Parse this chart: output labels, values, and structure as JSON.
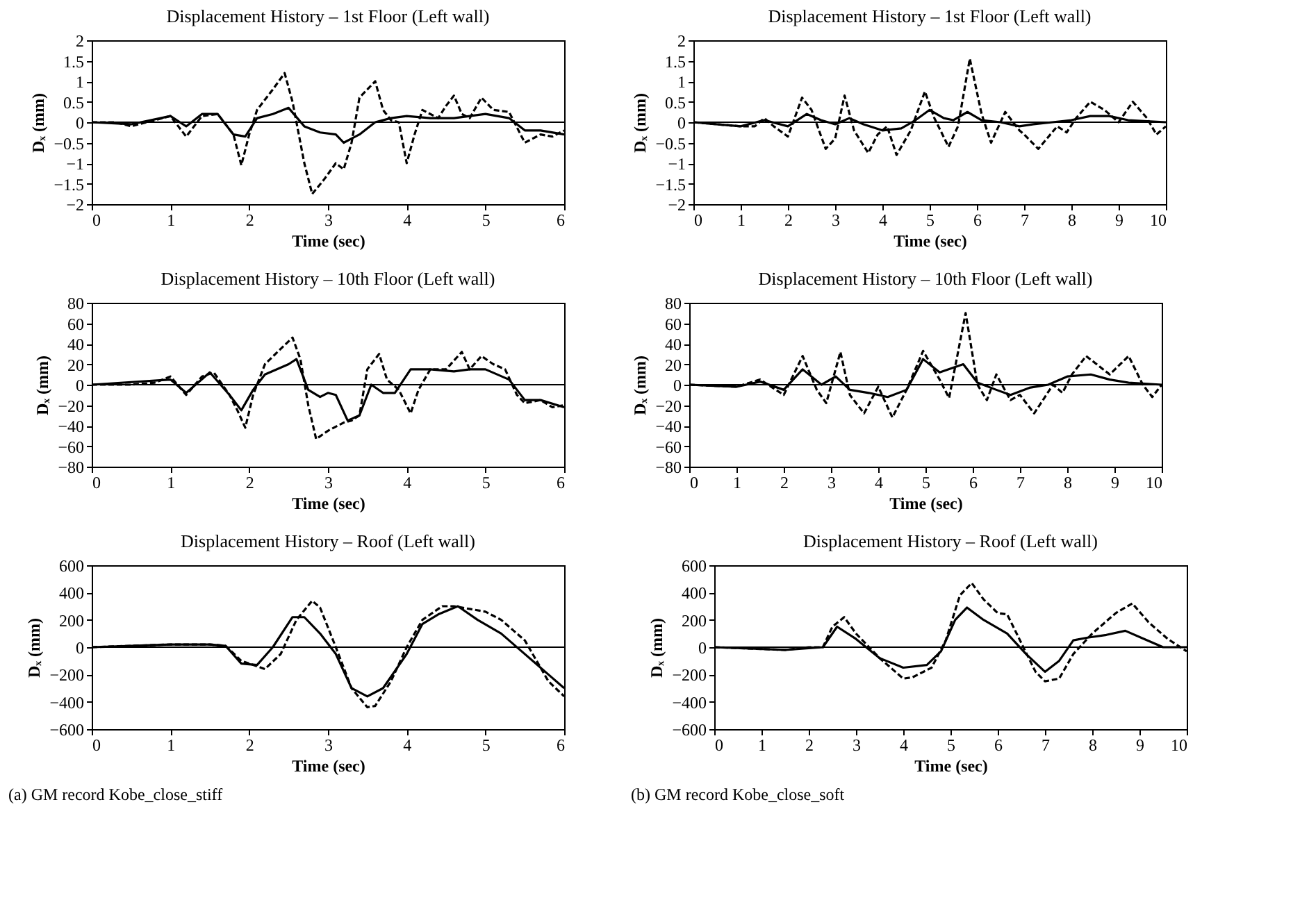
{
  "chart_data": [
    {
      "type": "line",
      "title": "Displacement History – 1st Floor (Left wall)",
      "xlabel": "Time (sec)",
      "ylabel": "Dₓ (mm)",
      "xlim": [
        0,
        6
      ],
      "xticks": [
        0,
        1,
        2,
        3,
        4,
        5,
        6
      ],
      "ylim": [
        -2,
        2
      ],
      "yticks": [
        -2,
        -1.5,
        -1,
        -0.5,
        0,
        0.5,
        1,
        1.5,
        2
      ],
      "grid": false,
      "ref_lines": [
        {
          "axis": "y",
          "value": 0
        }
      ],
      "series": [
        {
          "color": "#000000",
          "line_style": "solid",
          "x": [
            0,
            0.5,
            1.0,
            1.2,
            1.4,
            1.6,
            1.8,
            1.95,
            2.1,
            2.3,
            2.5,
            2.7,
            2.9,
            3.1,
            3.2,
            3.4,
            3.6,
            3.8,
            4.0,
            4.3,
            4.6,
            5.0,
            5.3,
            5.5,
            5.7,
            6
          ],
          "values": [
            0,
            -0.05,
            0.15,
            -0.1,
            0.2,
            0.2,
            -0.3,
            -0.35,
            0.1,
            0.2,
            0.35,
            -0.1,
            -0.25,
            -0.3,
            -0.5,
            -0.3,
            0.0,
            0.1,
            0.15,
            0.1,
            0.1,
            0.2,
            0.1,
            -0.2,
            -0.2,
            -0.3
          ]
        },
        {
          "color": "#000000",
          "line_style": "dashed",
          "x": [
            0,
            0.3,
            0.5,
            0.8,
            1.0,
            1.2,
            1.4,
            1.6,
            1.8,
            1.9,
            2.0,
            2.1,
            2.3,
            2.45,
            2.55,
            2.7,
            2.8,
            2.95,
            3.1,
            3.2,
            3.3,
            3.4,
            3.6,
            3.7,
            3.8,
            3.9,
            4.0,
            4.1,
            4.2,
            4.4,
            4.5,
            4.6,
            4.7,
            4.8,
            4.95,
            5.1,
            5.3,
            5.5,
            5.7,
            5.85,
            6
          ],
          "values": [
            0,
            0,
            -0.1,
            0.05,
            0.15,
            -0.35,
            0.15,
            0.2,
            -0.3,
            -1.05,
            -0.3,
            0.3,
            0.8,
            1.2,
            0.5,
            -1.0,
            -1.75,
            -1.4,
            -1.0,
            -1.15,
            -0.5,
            0.6,
            1.0,
            0.3,
            0.05,
            0.0,
            -1.0,
            -0.3,
            0.3,
            0.1,
            0.4,
            0.65,
            0.2,
            0.1,
            0.6,
            0.3,
            0.25,
            -0.5,
            -0.3,
            -0.35,
            -0.2
          ]
        }
      ]
    },
    {
      "type": "line",
      "title": "Displacement History – 1st Floor (Left wall)",
      "xlabel": "Time (sec)",
      "ylabel": "Dₓ (mm)",
      "xlim": [
        0,
        10
      ],
      "xticks": [
        0,
        1,
        2,
        3,
        4,
        5,
        6,
        7,
        8,
        9,
        10
      ],
      "ylim": [
        -2,
        2
      ],
      "yticks": [
        -2,
        -1.5,
        -1,
        -0.5,
        0,
        0.5,
        1,
        1.5,
        2
      ],
      "grid": false,
      "ref_lines": [
        {
          "axis": "y",
          "value": 0
        }
      ],
      "series": [
        {
          "color": "#000000",
          "line_style": "solid",
          "x": [
            0,
            1,
            1.5,
            2.0,
            2.4,
            2.7,
            3.0,
            3.3,
            3.6,
            4.0,
            4.4,
            4.7,
            5.0,
            5.3,
            5.5,
            5.8,
            6.1,
            6.5,
            6.9,
            7.2,
            7.6,
            8.0,
            8.4,
            8.8,
            9.2,
            10
          ],
          "values": [
            0,
            -0.1,
            0.05,
            -0.1,
            0.2,
            0.05,
            -0.05,
            0.1,
            -0.05,
            -0.2,
            -0.15,
            0.05,
            0.3,
            0.1,
            0.05,
            0.25,
            0.05,
            0.0,
            -0.1,
            -0.05,
            0.0,
            0.05,
            0.15,
            0.15,
            0.05,
            0
          ]
        },
        {
          "color": "#000000",
          "line_style": "dashed",
          "x": [
            0,
            1,
            1.3,
            1.5,
            1.7,
            2.0,
            2.3,
            2.5,
            2.8,
            3.0,
            3.2,
            3.4,
            3.7,
            3.9,
            4.1,
            4.3,
            4.6,
            4.9,
            5.1,
            5.4,
            5.6,
            5.85,
            6.1,
            6.3,
            6.6,
            6.9,
            7.0,
            7.3,
            7.7,
            7.9,
            8.1,
            8.4,
            8.7,
            9.0,
            9.3,
            9.6,
            9.8,
            10
          ],
          "values": [
            0,
            -0.1,
            -0.1,
            0.1,
            -0.1,
            -0.35,
            0.6,
            0.3,
            -0.65,
            -0.4,
            0.65,
            -0.2,
            -0.75,
            -0.3,
            -0.1,
            -0.8,
            -0.2,
            0.75,
            0.1,
            -0.6,
            -0.1,
            1.55,
            0.2,
            -0.5,
            0.25,
            -0.2,
            -0.3,
            -0.65,
            -0.1,
            -0.25,
            0.1,
            0.5,
            0.3,
            0.0,
            0.5,
            0.1,
            -0.3,
            -0.1
          ]
        }
      ]
    },
    {
      "type": "line",
      "title": "Displacement History – 10th Floor (Left wall)",
      "xlabel": "Time (sec)",
      "ylabel": "Dₓ (mm)",
      "xlim": [
        0,
        6
      ],
      "xticks": [
        0,
        1,
        2,
        3,
        4,
        5,
        6
      ],
      "ylim": [
        -80,
        80
      ],
      "yticks": [
        -80,
        -60,
        -40,
        -20,
        0,
        20,
        40,
        60,
        80
      ],
      "grid": false,
      "ref_lines": [
        {
          "axis": "y",
          "value": 0
        }
      ],
      "series": [
        {
          "color": "#000000",
          "line_style": "solid",
          "x": [
            0,
            1.0,
            1.2,
            1.5,
            1.75,
            1.9,
            2.05,
            2.2,
            2.5,
            2.6,
            2.75,
            2.9,
            3.0,
            3.1,
            3.25,
            3.4,
            3.55,
            3.7,
            3.85,
            4.05,
            4.3,
            4.6,
            4.8,
            5.0,
            5.3,
            5.5,
            5.7,
            6
          ],
          "values": [
            0,
            5,
            -8,
            12,
            -10,
            -25,
            -5,
            10,
            20,
            25,
            -5,
            -12,
            -8,
            -10,
            -35,
            -30,
            0,
            -8,
            -8,
            15,
            15,
            13,
            15,
            15,
            5,
            -15,
            -15,
            -22
          ]
        },
        {
          "color": "#000000",
          "line_style": "dashed",
          "x": [
            0,
            0.5,
            0.8,
            1.0,
            1.2,
            1.4,
            1.55,
            1.75,
            1.85,
            1.95,
            2.05,
            2.2,
            2.4,
            2.55,
            2.65,
            2.75,
            2.85,
            3.0,
            3.2,
            3.3,
            3.4,
            3.5,
            3.65,
            3.75,
            3.9,
            4.05,
            4.15,
            4.3,
            4.5,
            4.7,
            4.8,
            4.95,
            5.1,
            5.25,
            5.4,
            5.5,
            5.7,
            5.85,
            6
          ],
          "values": [
            0,
            0,
            2,
            8,
            -10,
            8,
            12,
            -10,
            -25,
            -42,
            -10,
            20,
            35,
            46,
            25,
            -20,
            -53,
            -45,
            -37,
            -35,
            -30,
            15,
            30,
            5,
            -5,
            -28,
            -5,
            15,
            15,
            32,
            15,
            28,
            20,
            15,
            -10,
            -18,
            -15,
            -22,
            -20
          ]
        }
      ]
    },
    {
      "type": "line",
      "title": "Displacement History – 10th Floor (Left wall)",
      "xlabel": "Time (sec)",
      "ylabel": "Dₓ (mm)",
      "xlim": [
        0,
        10
      ],
      "xticks": [
        0,
        1,
        2,
        3,
        4,
        5,
        6,
        7,
        8,
        9,
        10
      ],
      "ylim": [
        -80,
        80
      ],
      "yticks": [
        -80,
        -60,
        -40,
        -20,
        0,
        20,
        40,
        60,
        80
      ],
      "grid": false,
      "ref_lines": [
        {
          "axis": "y",
          "value": 0
        }
      ],
      "series": [
        {
          "color": "#000000",
          "line_style": "solid",
          "x": [
            0,
            1,
            1.5,
            2.0,
            2.4,
            2.8,
            3.1,
            3.4,
            3.8,
            4.2,
            4.6,
            4.95,
            5.3,
            5.8,
            6.1,
            6.5,
            6.8,
            7.2,
            7.6,
            8.0,
            8.5,
            8.9,
            9.3,
            10
          ],
          "values": [
            0,
            -2,
            3,
            -5,
            15,
            0,
            8,
            -5,
            -8,
            -12,
            -5,
            25,
            12,
            20,
            2,
            -5,
            -10,
            -3,
            0,
            8,
            10,
            5,
            2,
            0
          ]
        },
        {
          "color": "#000000",
          "line_style": "dashed",
          "x": [
            0,
            1,
            1.5,
            2.0,
            2.4,
            2.7,
            2.9,
            3.2,
            3.4,
            3.7,
            4.0,
            4.3,
            4.6,
            4.95,
            5.3,
            5.5,
            5.85,
            6.1,
            6.3,
            6.5,
            6.8,
            7.0,
            7.3,
            7.7,
            7.9,
            8.1,
            8.4,
            8.9,
            9.3,
            9.6,
            9.8,
            10
          ],
          "values": [
            0,
            -2,
            5,
            -10,
            28,
            -5,
            -18,
            32,
            -10,
            -28,
            -2,
            -32,
            -5,
            33,
            5,
            -13,
            70,
            0,
            -15,
            10,
            -15,
            -10,
            -28,
            0,
            -8,
            10,
            28,
            10,
            28,
            0,
            -12,
            0
          ]
        }
      ]
    },
    {
      "type": "line",
      "title": "Displacement History – Roof (Left wall)",
      "xlabel": "Time (sec)",
      "ylabel": "Dₓ (mm)",
      "xlim": [
        0,
        6
      ],
      "xticks": [
        0,
        1,
        2,
        3,
        4,
        5,
        6
      ],
      "ylim": [
        -600,
        600
      ],
      "yticks": [
        -600,
        -400,
        -200,
        0,
        200,
        400,
        600
      ],
      "grid": false,
      "ref_lines": [
        {
          "axis": "y",
          "value": 0
        }
      ],
      "annotations": [
        "(a) GM record Kobe_close_stiff"
      ],
      "series": [
        {
          "color": "#000000",
          "line_style": "solid",
          "x": [
            0,
            1.0,
            1.5,
            1.7,
            1.9,
            2.1,
            2.3,
            2.55,
            2.7,
            2.9,
            3.1,
            3.3,
            3.5,
            3.7,
            4.0,
            4.2,
            4.4,
            4.65,
            4.9,
            5.2,
            5.5,
            5.8,
            6
          ],
          "values": [
            0,
            20,
            20,
            10,
            -120,
            -130,
            0,
            220,
            220,
            100,
            -50,
            -300,
            -360,
            -300,
            -50,
            170,
            240,
            300,
            200,
            100,
            -50,
            -200,
            -300
          ]
        },
        {
          "color": "#000000",
          "line_style": "dashed",
          "x": [
            0,
            1.0,
            1.5,
            1.7,
            1.9,
            2.2,
            2.4,
            2.6,
            2.8,
            2.9,
            3.1,
            3.3,
            3.5,
            3.6,
            3.8,
            4.0,
            4.2,
            4.45,
            4.6,
            4.8,
            5.0,
            5.2,
            5.5,
            5.8,
            6
          ],
          "values": [
            0,
            20,
            20,
            10,
            -100,
            -160,
            -50,
            200,
            340,
            290,
            0,
            -300,
            -440,
            -430,
            -250,
            0,
            200,
            300,
            300,
            280,
            260,
            200,
            50,
            -250,
            -360
          ]
        }
      ]
    },
    {
      "type": "line",
      "title": "Displacement History – Roof (Left wall)",
      "xlabel": "Time (sec)",
      "ylabel": "Dₓ (mm)",
      "xlim": [
        0,
        10
      ],
      "xticks": [
        0,
        1,
        2,
        3,
        4,
        5,
        6,
        7,
        8,
        9,
        10
      ],
      "ylim": [
        -600,
        600
      ],
      "yticks": [
        -600,
        -400,
        -200,
        0,
        200,
        400,
        600
      ],
      "grid": false,
      "ref_lines": [
        {
          "axis": "y",
          "value": 0
        }
      ],
      "annotations": [
        "(b) GM record Kobe_close_soft"
      ],
      "series": [
        {
          "color": "#000000",
          "line_style": "solid",
          "x": [
            0,
            1.5,
            2.3,
            2.6,
            3.0,
            3.5,
            4.0,
            4.5,
            4.8,
            5.1,
            5.35,
            5.7,
            6.2,
            6.6,
            7.0,
            7.3,
            7.6,
            7.9,
            8.3,
            8.7,
            9.1,
            9.5,
            10
          ],
          "values": [
            0,
            -20,
            0,
            150,
            60,
            -80,
            -150,
            -130,
            -30,
            200,
            290,
            200,
            100,
            -50,
            -180,
            -100,
            50,
            70,
            90,
            120,
            60,
            0,
            0
          ]
        },
        {
          "color": "#000000",
          "line_style": "dashed",
          "x": [
            0,
            1.5,
            2.0,
            2.3,
            2.5,
            2.75,
            3.0,
            3.5,
            4.0,
            4.2,
            4.6,
            4.9,
            5.2,
            5.45,
            5.7,
            6.0,
            6.2,
            6.5,
            6.8,
            7.0,
            7.3,
            7.6,
            8.0,
            8.5,
            8.85,
            9.2,
            9.6,
            10
          ],
          "values": [
            0,
            -20,
            0,
            0,
            150,
            220,
            100,
            -80,
            -230,
            -220,
            -150,
            50,
            380,
            470,
            350,
            250,
            240,
            30,
            -180,
            -250,
            -230,
            -50,
            100,
            250,
            320,
            180,
            60,
            -30
          ]
        }
      ]
    }
  ]
}
